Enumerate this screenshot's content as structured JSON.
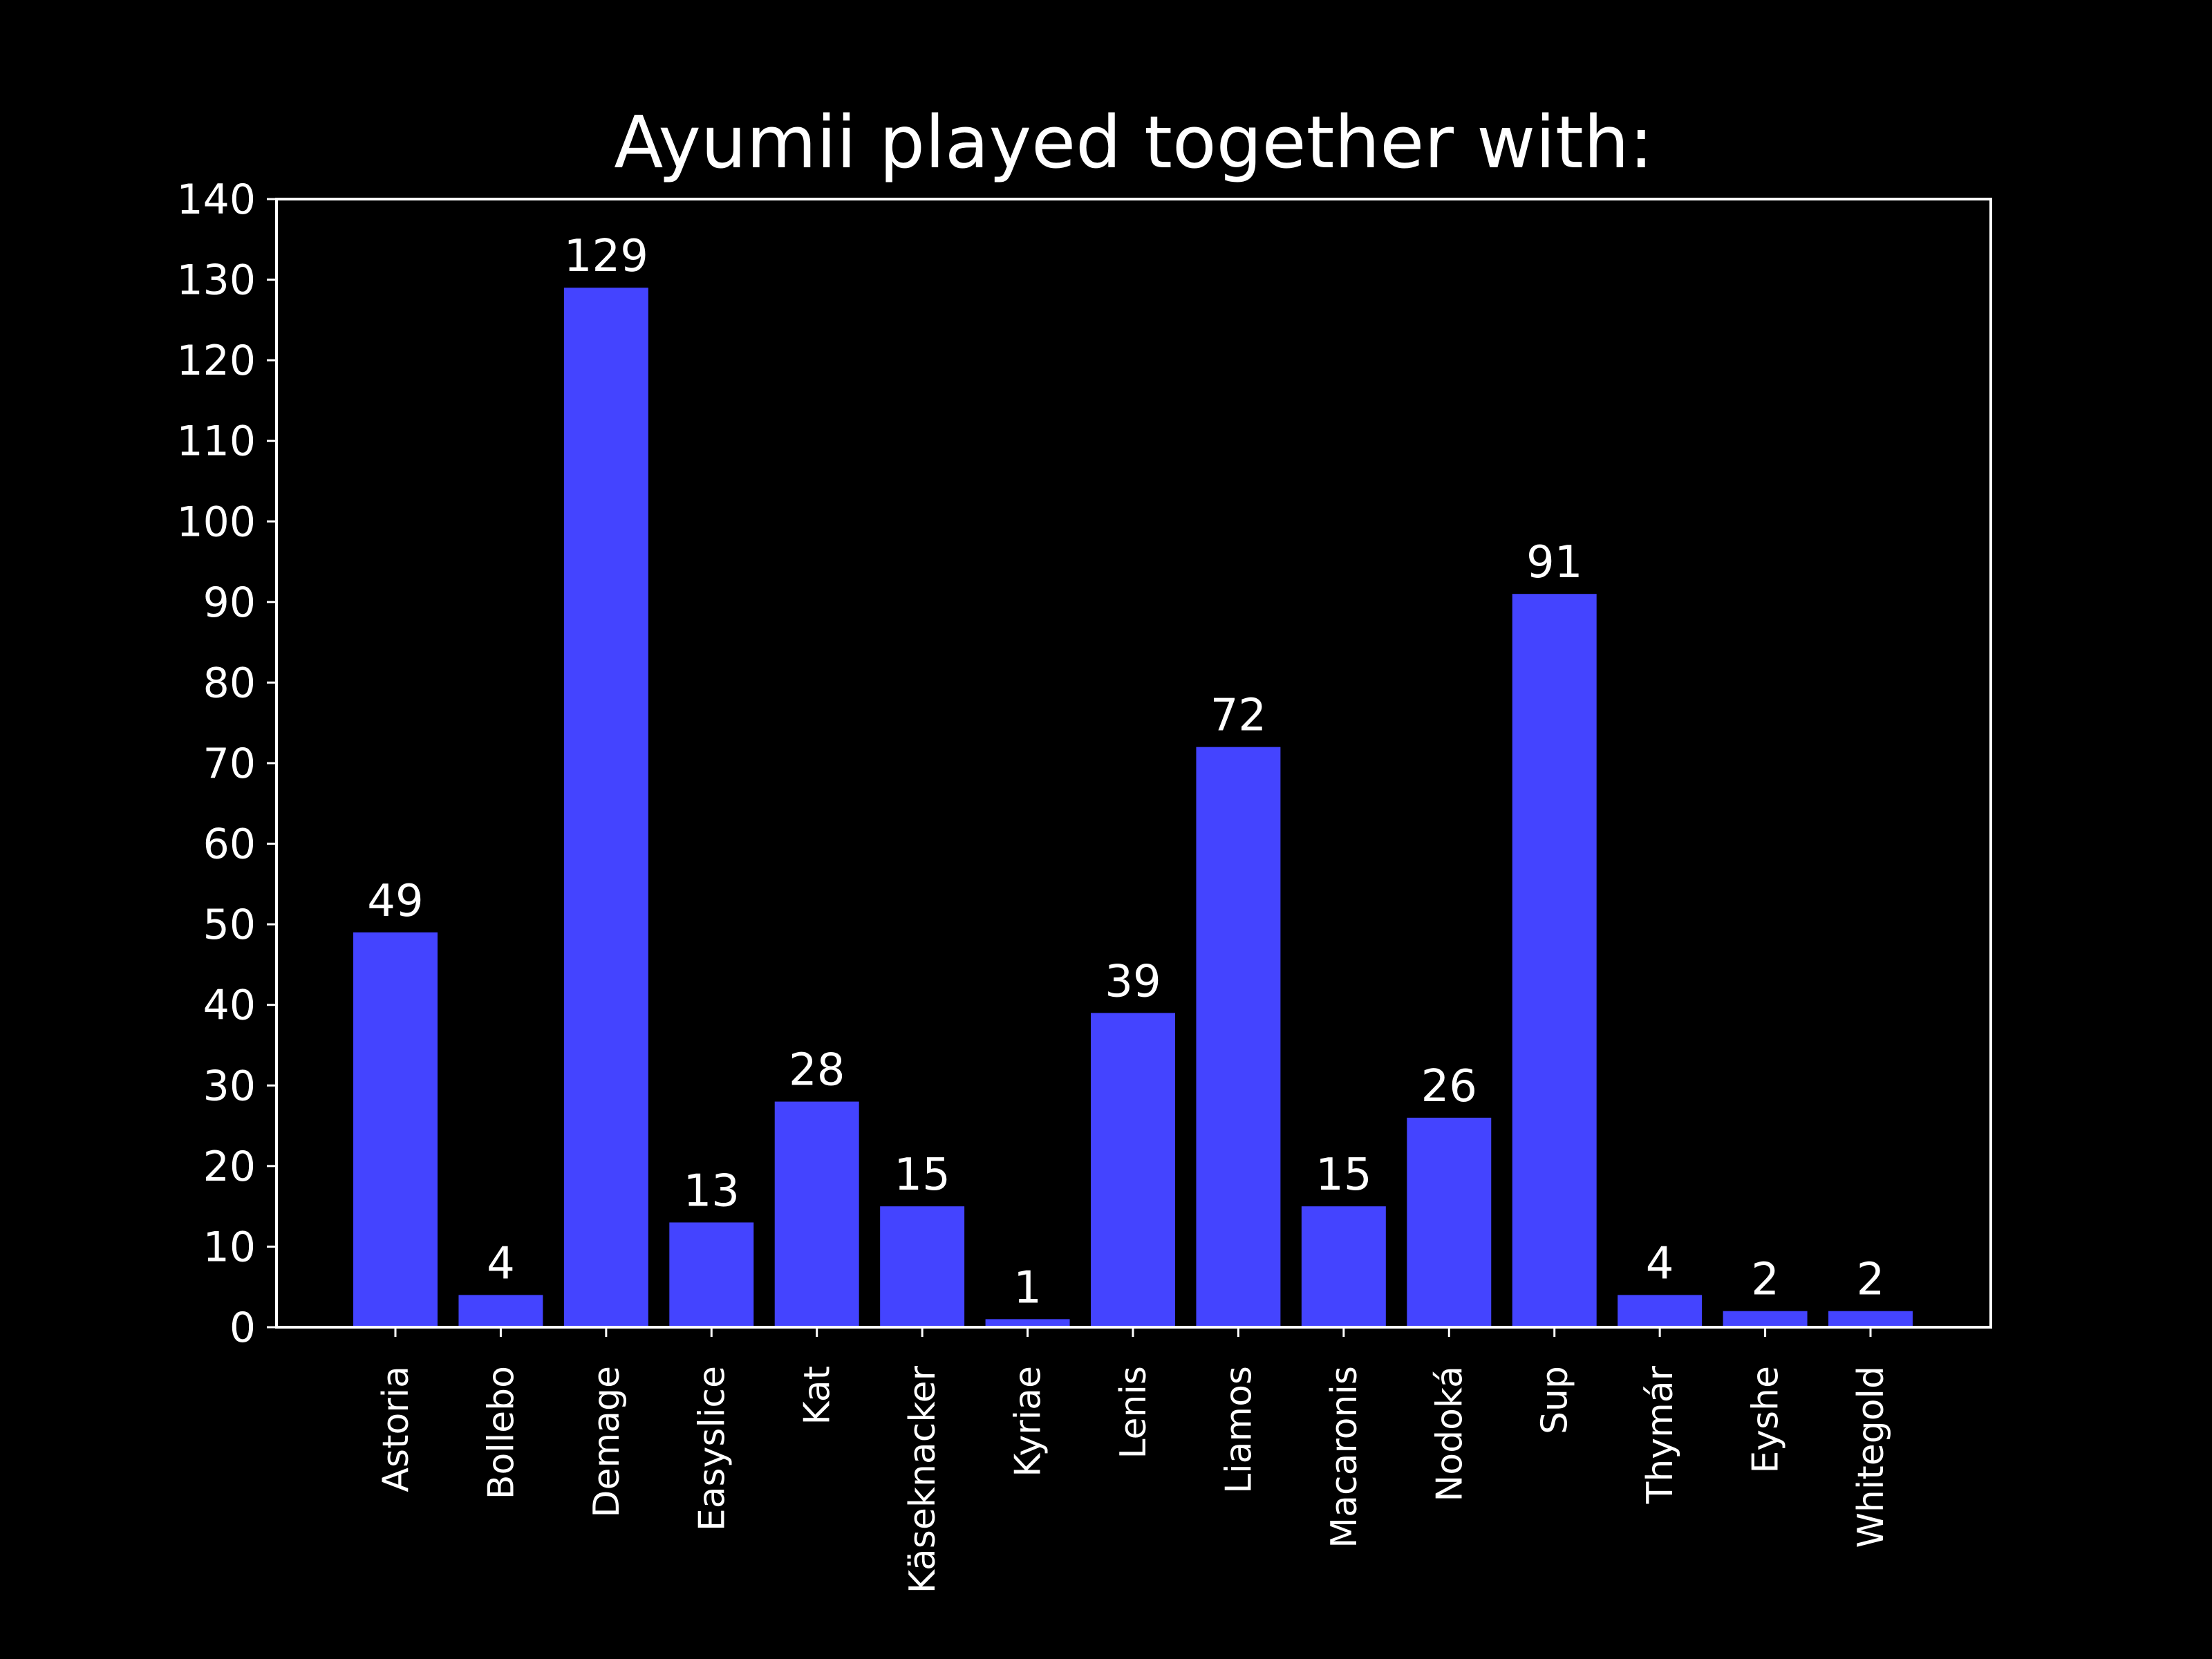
{
  "colors": {
    "background": "#000000",
    "bar": "#4444ff",
    "text": "#ffffff",
    "axes": "#ffffff"
  },
  "chart_data": {
    "type": "bar",
    "title": "Ayumii played together with:",
    "xlabel": "",
    "ylabel": "",
    "categories": [
      "Astoria",
      "Bollebo",
      "Demage",
      "Easyslice",
      "Kat",
      "Käseknacker",
      "Kyriae",
      "Lenis",
      "Liamos",
      "Macaronis",
      "Nodoká",
      "Sup",
      "Thymár",
      "Eyshe",
      "Whitegold"
    ],
    "values": [
      49,
      4,
      129,
      13,
      28,
      15,
      1,
      39,
      72,
      15,
      26,
      91,
      4,
      2,
      2
    ],
    "ylim": [
      0,
      140
    ],
    "yticks": [
      0,
      10,
      20,
      30,
      40,
      50,
      60,
      70,
      80,
      90,
      100,
      110,
      120,
      130,
      140
    ],
    "grid": false,
    "legend": "none",
    "data_labels": true,
    "xtick_rotation": "vertical"
  }
}
